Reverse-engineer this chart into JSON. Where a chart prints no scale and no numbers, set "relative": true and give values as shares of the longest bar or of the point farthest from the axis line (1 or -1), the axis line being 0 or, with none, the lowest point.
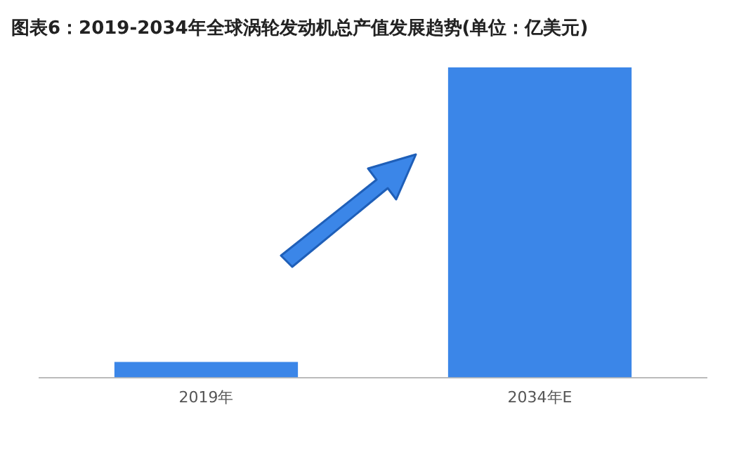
{
  "chart_data": {
    "type": "bar",
    "title": "图表6：2019-2034年全球涡轮发动机总产值发展趋势(单位：亿美元)",
    "categories": [
      "2019年",
      "2034年E"
    ],
    "values": [
      0.05,
      1
    ],
    "color": "#3b86e8",
    "relative": true,
    "grid": false,
    "legend": false
  }
}
